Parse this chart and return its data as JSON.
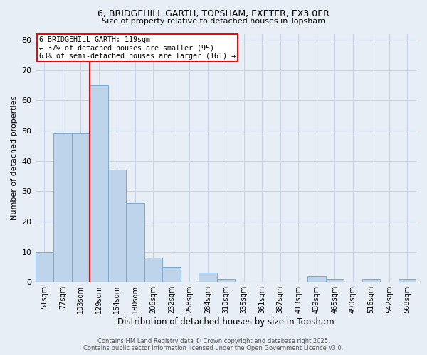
{
  "title_line1": "6, BRIDGEHILL GARTH, TOPSHAM, EXETER, EX3 0ER",
  "title_line2": "Size of property relative to detached houses in Topsham",
  "categories": [
    "51sqm",
    "77sqm",
    "103sqm",
    "129sqm",
    "154sqm",
    "180sqm",
    "206sqm",
    "232sqm",
    "258sqm",
    "284sqm",
    "310sqm",
    "335sqm",
    "361sqm",
    "387sqm",
    "413sqm",
    "439sqm",
    "465sqm",
    "490sqm",
    "516sqm",
    "542sqm",
    "568sqm"
  ],
  "values": [
    10,
    49,
    49,
    65,
    37,
    26,
    8,
    5,
    0,
    3,
    1,
    0,
    0,
    0,
    0,
    2,
    1,
    0,
    1,
    0,
    1
  ],
  "bar_color": "#bdd4ea",
  "bar_edge_color": "#7ba7d0",
  "xlabel": "Distribution of detached houses by size in Topsham",
  "ylabel": "Number of detached properties",
  "ylim": [
    0,
    82
  ],
  "yticks": [
    0,
    10,
    20,
    30,
    40,
    50,
    60,
    70,
    80
  ],
  "vline_x_index": 2.5,
  "vline_color": "red",
  "annotation_text": "6 BRIDGEHILL GARTH: 119sqm\n← 37% of detached houses are smaller (95)\n63% of semi-detached houses are larger (161) →",
  "annotation_box_color": "white",
  "annotation_box_edge": "red",
  "footer_line1": "Contains HM Land Registry data © Crown copyright and database right 2025.",
  "footer_line2": "Contains public sector information licensed under the Open Government Licence v3.0.",
  "grid_color": "#c8d4e8",
  "bg_color": "#e8eef5"
}
